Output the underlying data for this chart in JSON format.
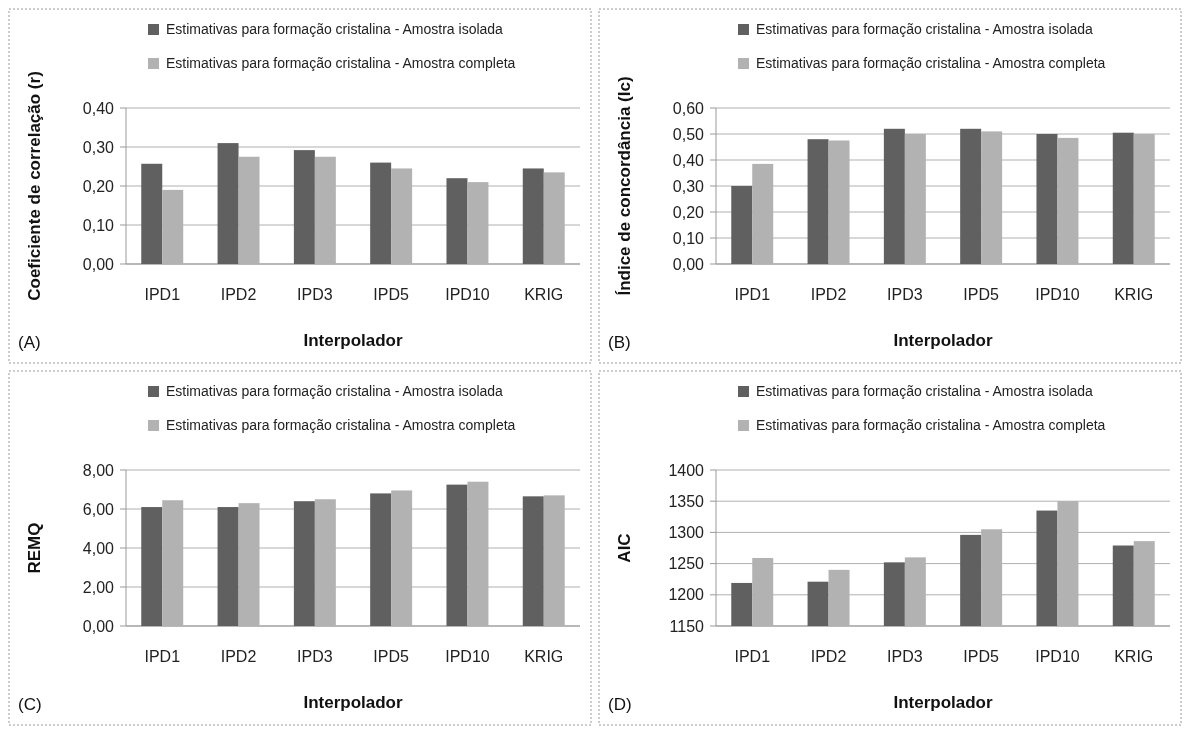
{
  "chart_data": [
    {
      "type": "bar",
      "categories": [
        "IPD1",
        "IPD2",
        "IPD3",
        "IPD5",
        "IPD10",
        "KRIG"
      ],
      "xlabel": "Interpolador",
      "ylabel": "Coeficiente de correlação (r)",
      "annotations": [
        "(A)"
      ],
      "ylim": [
        0,
        0.4
      ],
      "yticks": [
        {
          "value": 0,
          "label": "0,00"
        },
        {
          "value": 0.1,
          "label": "0,10"
        },
        {
          "value": 0.2,
          "label": "0,20"
        },
        {
          "value": 0.3,
          "label": "0,30"
        },
        {
          "value": 0.4,
          "label": "0,40"
        }
      ],
      "grid": "y",
      "legend": "top",
      "series": [
        {
          "name": "Estimativas para formação cristalina - Amostra isolada",
          "color": "#606060",
          "values": [
            0.257,
            0.31,
            0.292,
            0.26,
            0.22,
            0.245
          ]
        },
        {
          "name": "Estimativas para formação cristalina - Amostra completa",
          "color": "#b2b2b2",
          "values": [
            0.19,
            0.275,
            0.275,
            0.245,
            0.21,
            0.235
          ]
        }
      ]
    },
    {
      "type": "bar",
      "categories": [
        "IPD1",
        "IPD2",
        "IPD3",
        "IPD5",
        "IPD10",
        "KRIG"
      ],
      "xlabel": "Interpolador",
      "ylabel": "Índice de concordância (Ic)",
      "annotations": [
        "(B)"
      ],
      "ylim": [
        0,
        0.6
      ],
      "yticks": [
        {
          "value": 0,
          "label": "0,00"
        },
        {
          "value": 0.1,
          "label": "0,10"
        },
        {
          "value": 0.2,
          "label": "0,20"
        },
        {
          "value": 0.3,
          "label": "0,30"
        },
        {
          "value": 0.4,
          "label": "0,40"
        },
        {
          "value": 0.5,
          "label": "0,50"
        },
        {
          "value": 0.6,
          "label": "0,60"
        }
      ],
      "grid": "y",
      "legend": "top",
      "series": [
        {
          "name": "Estimativas para formação cristalina - Amostra isolada",
          "color": "#606060",
          "values": [
            0.3,
            0.48,
            0.52,
            0.52,
            0.5,
            0.505
          ]
        },
        {
          "name": "Estimativas para formação cristalina - Amostra completa",
          "color": "#b2b2b2",
          "values": [
            0.385,
            0.475,
            0.5,
            0.51,
            0.485,
            0.5
          ]
        }
      ]
    },
    {
      "type": "bar",
      "categories": [
        "IPD1",
        "IPD2",
        "IPD3",
        "IPD5",
        "IPD10",
        "KRIG"
      ],
      "xlabel": "Interpolador",
      "ylabel": "REMQ",
      "annotations": [
        "(C)"
      ],
      "ylim": [
        0,
        8
      ],
      "yticks": [
        {
          "value": 0,
          "label": "0,00"
        },
        {
          "value": 2,
          "label": "2,00"
        },
        {
          "value": 4,
          "label": "4,00"
        },
        {
          "value": 6,
          "label": "6,00"
        },
        {
          "value": 8,
          "label": "8,00"
        }
      ],
      "grid": "y",
      "legend": "top",
      "series": [
        {
          "name": "Estimativas para formação cristalina - Amostra isolada",
          "color": "#606060",
          "values": [
            6.1,
            6.1,
            6.4,
            6.8,
            7.25,
            6.65
          ]
        },
        {
          "name": "Estimativas para formação cristalina - Amostra completa",
          "color": "#b2b2b2",
          "values": [
            6.45,
            6.3,
            6.5,
            6.95,
            7.4,
            6.7
          ]
        }
      ]
    },
    {
      "type": "bar",
      "categories": [
        "IPD1",
        "IPD2",
        "IPD3",
        "IPD5",
        "IPD10",
        "KRIG"
      ],
      "xlabel": "Interpolador",
      "ylabel": "AIC",
      "annotations": [
        "(D)"
      ],
      "ylim": [
        1150,
        1400
      ],
      "yticks": [
        1150,
        1200,
        1250,
        1300,
        1350,
        1400
      ],
      "grid": "y",
      "legend": "top",
      "series": [
        {
          "name": "Estimativas para formação cristalina - Amostra isolada",
          "color": "#606060",
          "values": [
            1219,
            1221,
            1252,
            1296,
            1335,
            1279
          ]
        },
        {
          "name": "Estimativas para formação cristalina - Amostra completa",
          "color": "#b2b2b2",
          "values": [
            1259,
            1240,
            1260,
            1305,
            1350,
            1286
          ]
        }
      ]
    }
  ]
}
